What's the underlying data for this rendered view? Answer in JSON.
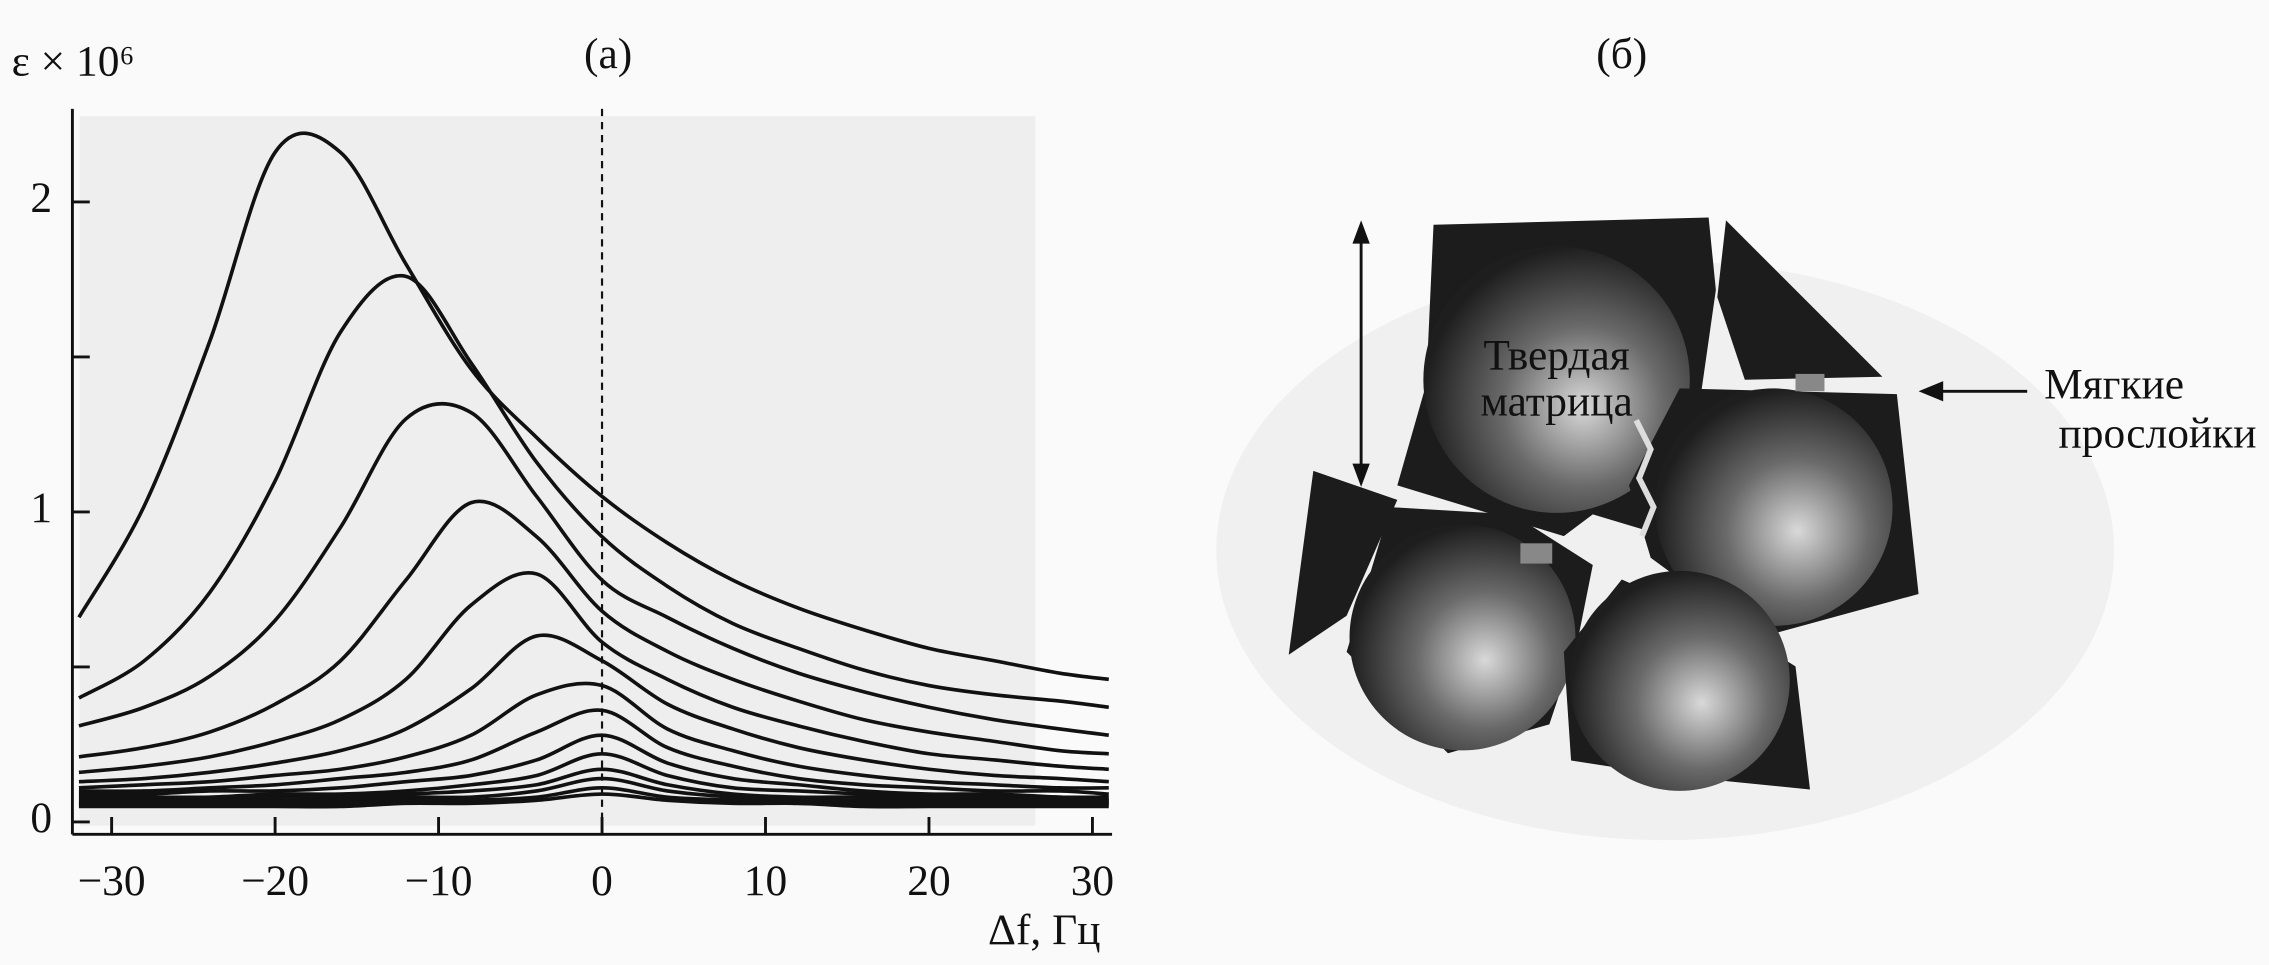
{
  "chart_data": {
    "type": "line",
    "panel_label": "(a)",
    "ylabel": "ε × 10⁶",
    "xlabel": "Δf, Гц",
    "x": [
      -32,
      -28,
      -24,
      -20,
      -16,
      -12,
      -8,
      -4,
      0,
      4,
      8,
      12,
      16,
      20,
      24,
      28,
      31
    ],
    "series": [
      {
        "color": "#111111",
        "values": [
          0.66,
          1.02,
          1.55,
          2.16,
          2.16,
          1.8,
          1.46,
          1.24,
          1.05,
          0.9,
          0.78,
          0.69,
          0.62,
          0.56,
          0.52,
          0.48,
          0.46
        ]
      },
      {
        "color": "#111111",
        "values": [
          0.4,
          0.52,
          0.74,
          1.1,
          1.58,
          1.76,
          1.48,
          1.16,
          0.92,
          0.76,
          0.64,
          0.56,
          0.49,
          0.44,
          0.41,
          0.39,
          0.37
        ]
      },
      {
        "color": "#111111",
        "values": [
          0.31,
          0.37,
          0.47,
          0.65,
          0.95,
          1.3,
          1.32,
          1.05,
          0.78,
          0.66,
          0.56,
          0.48,
          0.42,
          0.37,
          0.33,
          0.3,
          0.28
        ]
      },
      {
        "color": "#111111",
        "values": [
          0.21,
          0.24,
          0.29,
          0.38,
          0.52,
          0.78,
          1.03,
          0.92,
          0.68,
          0.55,
          0.46,
          0.39,
          0.33,
          0.29,
          0.26,
          0.23,
          0.22
        ]
      },
      {
        "color": "#111111",
        "values": [
          0.16,
          0.18,
          0.21,
          0.26,
          0.33,
          0.46,
          0.7,
          0.8,
          0.58,
          0.46,
          0.37,
          0.31,
          0.26,
          0.22,
          0.2,
          0.18,
          0.17
        ]
      },
      {
        "color": "#111111",
        "values": [
          0.13,
          0.14,
          0.16,
          0.19,
          0.23,
          0.3,
          0.43,
          0.6,
          0.52,
          0.38,
          0.3,
          0.24,
          0.2,
          0.17,
          0.15,
          0.14,
          0.13
        ]
      },
      {
        "color": "#111111",
        "values": [
          0.11,
          0.12,
          0.13,
          0.15,
          0.17,
          0.21,
          0.28,
          0.41,
          0.44,
          0.3,
          0.23,
          0.18,
          0.15,
          0.13,
          0.12,
          0.11,
          0.11
        ]
      },
      {
        "color": "#111111",
        "values": [
          0.1,
          0.1,
          0.11,
          0.12,
          0.14,
          0.16,
          0.2,
          0.29,
          0.36,
          0.24,
          0.18,
          0.14,
          0.12,
          0.11,
          0.1,
          0.1,
          0.09
        ]
      },
      {
        "color": "#111111",
        "values": [
          0.09,
          0.09,
          0.1,
          0.1,
          0.11,
          0.13,
          0.15,
          0.2,
          0.28,
          0.19,
          0.14,
          0.12,
          0.1,
          0.09,
          0.09,
          0.08,
          0.08
        ]
      },
      {
        "color": "#111111",
        "values": [
          0.08,
          0.08,
          0.08,
          0.09,
          0.09,
          0.1,
          0.12,
          0.15,
          0.22,
          0.15,
          0.11,
          0.1,
          0.09,
          0.08,
          0.08,
          0.08,
          0.07
        ]
      },
      {
        "color": "#111111",
        "values": [
          0.07,
          0.07,
          0.07,
          0.08,
          0.08,
          0.09,
          0.1,
          0.12,
          0.17,
          0.12,
          0.09,
          0.08,
          0.08,
          0.07,
          0.07,
          0.07,
          0.07
        ]
      },
      {
        "color": "#111111",
        "values": [
          0.06,
          0.06,
          0.07,
          0.07,
          0.07,
          0.08,
          0.08,
          0.1,
          0.14,
          0.1,
          0.08,
          0.07,
          0.07,
          0.07,
          0.06,
          0.06,
          0.06
        ]
      },
      {
        "color": "#111111",
        "values": [
          0.06,
          0.06,
          0.06,
          0.06,
          0.06,
          0.07,
          0.07,
          0.08,
          0.11,
          0.08,
          0.07,
          0.06,
          0.06,
          0.06,
          0.06,
          0.06,
          0.06
        ]
      },
      {
        "color": "#111111",
        "values": [
          0.05,
          0.05,
          0.05,
          0.05,
          0.05,
          0.06,
          0.06,
          0.07,
          0.09,
          0.07,
          0.06,
          0.06,
          0.05,
          0.05,
          0.05,
          0.05,
          0.05
        ]
      }
    ],
    "xlim": [
      -32.4,
      31.2
    ],
    "ylim": [
      -0.04,
      2.3
    ],
    "xticks": [
      {
        "value": -30,
        "label": "−30"
      },
      {
        "value": -20,
        "label": "−20"
      },
      {
        "value": -10,
        "label": "−10"
      },
      0,
      10,
      20,
      30
    ],
    "yticks": [
      0,
      1,
      2
    ],
    "yminor_ticks": [
      0.5,
      1.5
    ],
    "reference_line_x": 0
  },
  "diagram": {
    "label": "(б)",
    "core_label": [
      "Твердая",
      "матрица"
    ],
    "layer_label": [
      "Мягкие",
      "прослойки"
    ]
  }
}
